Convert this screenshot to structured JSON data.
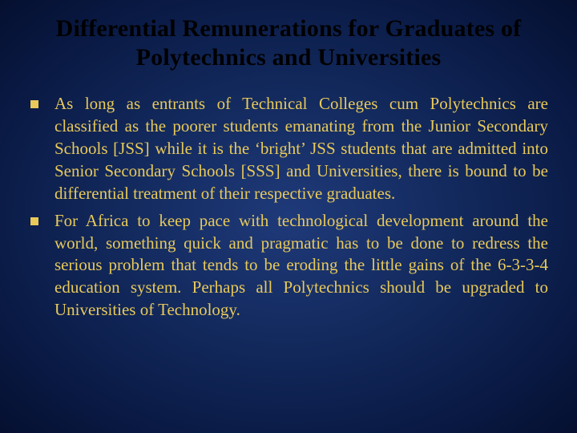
{
  "slide": {
    "background_gradient": {
      "center": "#1f3a7a",
      "mid": "#132a5e",
      "outer": "#0a1a45",
      "edge": "#051030"
    },
    "text_color": "#e8c95a",
    "title_color": "#000000",
    "bullet_marker_color": "#e8c95a",
    "title_fontsize": 30,
    "body_fontsize": 21,
    "font_family": "Garamond",
    "title": "Differential Remunerations for Graduates of Polytechnics and Universities",
    "bullets": [
      "As long as entrants of Technical Colleges cum Polytechnics are classified as the poorer students emanating from the Junior Secondary Schools [JSS] while it is the ‘bright’ JSS students that are admitted into Senior Secondary Schools [SSS] and Universities, there is bound to be differential treatment of their respective graduates.",
      "For Africa to keep pace with technological development around the world, something quick and pragmatic has to be done to redress the serious problem that tends to be eroding the little gains of the 6-3-3-4 education system. Perhaps all Polytechnics should be upgraded to Universities of Technology."
    ]
  }
}
